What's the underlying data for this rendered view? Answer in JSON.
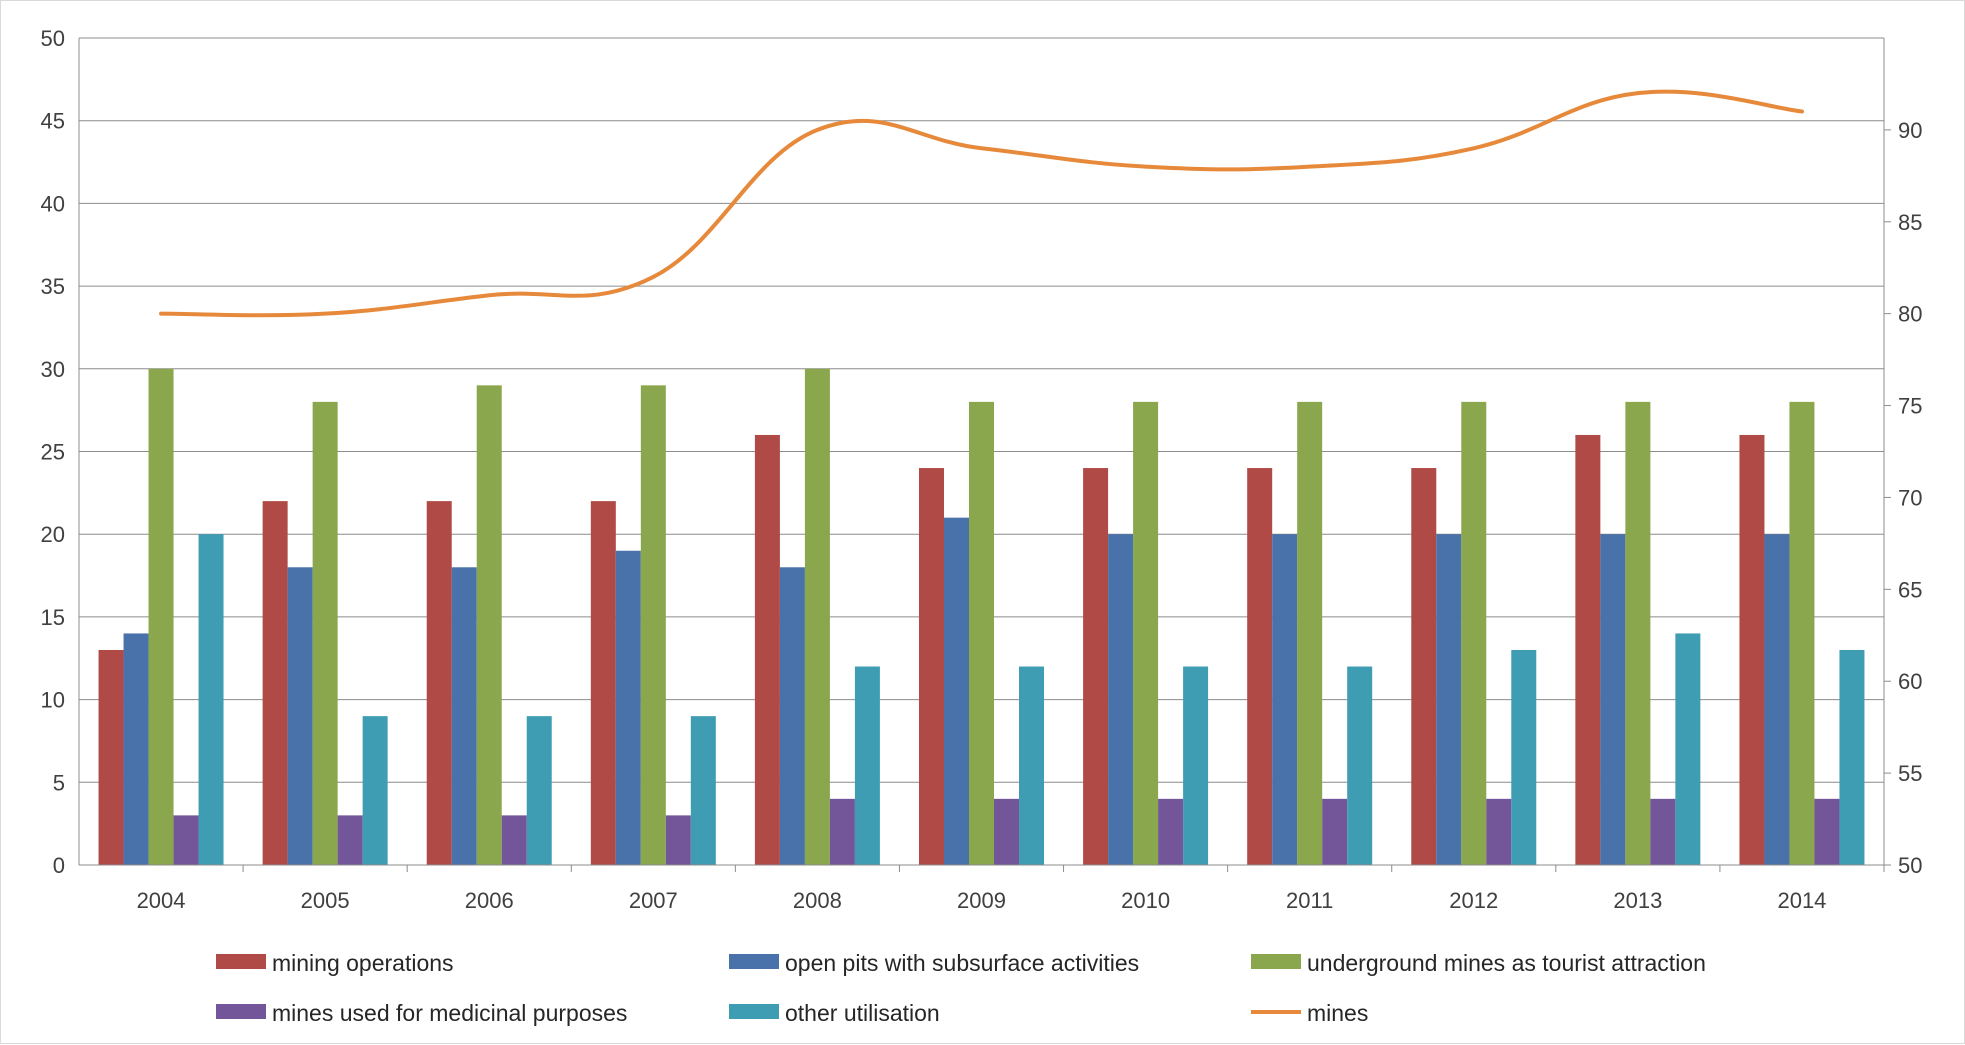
{
  "chart_data": {
    "type": "bar",
    "categories": [
      "2004",
      "2005",
      "2006",
      "2007",
      "2008",
      "2009",
      "2010",
      "2011",
      "2012",
      "2013",
      "2014"
    ],
    "series": [
      {
        "name": "mining operations",
        "color": "#b04a47",
        "axis": "left",
        "kind": "bar",
        "values": [
          13,
          22,
          22,
          22,
          26,
          24,
          24,
          24,
          24,
          26,
          26
        ]
      },
      {
        "name": "open pits with subsurface activities",
        "color": "#4a72aa",
        "axis": "left",
        "kind": "bar",
        "values": [
          14,
          18,
          18,
          19,
          18,
          21,
          20,
          20,
          20,
          20,
          20
        ]
      },
      {
        "name": "underground mines as tourist attraction",
        "color": "#8aa74d",
        "axis": "left",
        "kind": "bar",
        "values": [
          30,
          28,
          29,
          29,
          30,
          28,
          28,
          28,
          28,
          28,
          28
        ]
      },
      {
        "name": "mines used for medicinal purposes",
        "color": "#73569a",
        "axis": "left",
        "kind": "bar",
        "values": [
          3,
          3,
          3,
          3,
          4,
          4,
          4,
          4,
          4,
          4,
          4
        ]
      },
      {
        "name": "other utilisation",
        "color": "#3f9db3",
        "axis": "left",
        "kind": "bar",
        "values": [
          20,
          9,
          9,
          9,
          12,
          12,
          12,
          12,
          13,
          14,
          13
        ]
      },
      {
        "name": "mines",
        "color": "#e7893b",
        "axis": "right",
        "kind": "line",
        "values": [
          80,
          80,
          81,
          82,
          90,
          89,
          88,
          88,
          89,
          92,
          91
        ]
      }
    ],
    "y_left": {
      "ylim": [
        0,
        50
      ],
      "ticks": [
        "0",
        "5",
        "10",
        "15",
        "20",
        "25",
        "30",
        "35",
        "40",
        "45",
        "50"
      ]
    },
    "y_right": {
      "ylim": [
        50,
        95
      ],
      "ticks": [
        "50",
        "55",
        "60",
        "65",
        "70",
        "75",
        "80",
        "85",
        "90"
      ]
    },
    "grid": true,
    "legend_position": "bottom",
    "title": "",
    "xlabel": "",
    "ylabel": ""
  }
}
